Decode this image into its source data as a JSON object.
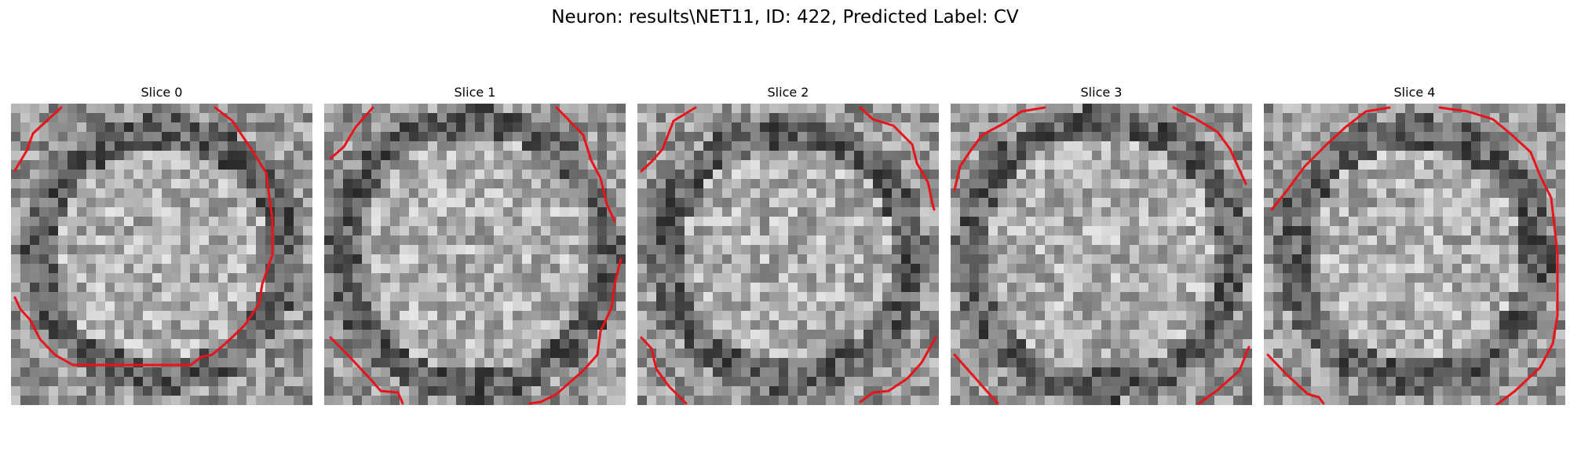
{
  "figure": {
    "title": "Neuron: results\\NET11, ID: 422, Predicted Label: CV"
  },
  "panels": [
    {
      "title": "Slice 0"
    },
    {
      "title": "Slice 1"
    },
    {
      "title": "Slice 2"
    },
    {
      "title": "Slice 3"
    },
    {
      "title": "Slice 4"
    }
  ],
  "colors": {
    "contour": "#e8141b",
    "colormap": "grayscale"
  }
}
